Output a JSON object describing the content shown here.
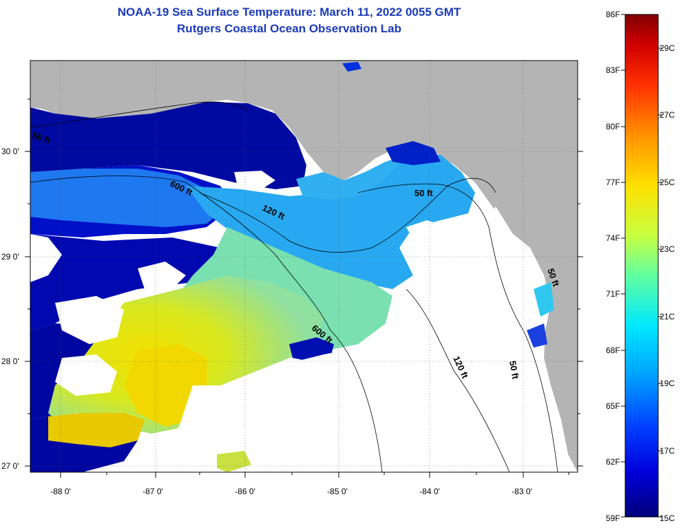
{
  "title": {
    "line1": "NOAA-19 Sea Surface Temperature:  March 11, 2022 0055 GMT",
    "line2": "Rutgers Coastal Ocean Observation Lab"
  },
  "map": {
    "lon_labels": [
      "-88 0'",
      "-87 0'",
      "-86 0'",
      "-85 0'",
      "-84 0'",
      "-83 0'"
    ],
    "lat_labels": [
      "30 0'",
      "29 0'",
      "28 0'",
      "27 0'"
    ],
    "depth_contour_labels": [
      "50 ft",
      "600 ft",
      "120 ft",
      "50 ft",
      "600 ft",
      "120 ft",
      "50 ft",
      "50 ft"
    ],
    "land_color": "#b4b4b4",
    "no_data_color": "#ffffff"
  },
  "colorbar": {
    "f_labels": [
      "86F",
      "83F",
      "80F",
      "77F",
      "74F",
      "71F",
      "68F",
      "65F",
      "62F",
      "59F"
    ],
    "c_labels": [
      "29C",
      "27C",
      "25C",
      "23C",
      "21C",
      "19C",
      "17C",
      "15C"
    ],
    "colors": [
      "#00007a",
      "#0000dc",
      "#0040ff",
      "#00a0ff",
      "#00e8ff",
      "#60ffa0",
      "#c8ff40",
      "#ffe000",
      "#ff9000",
      "#ff3000",
      "#d00000",
      "#800000"
    ]
  }
}
